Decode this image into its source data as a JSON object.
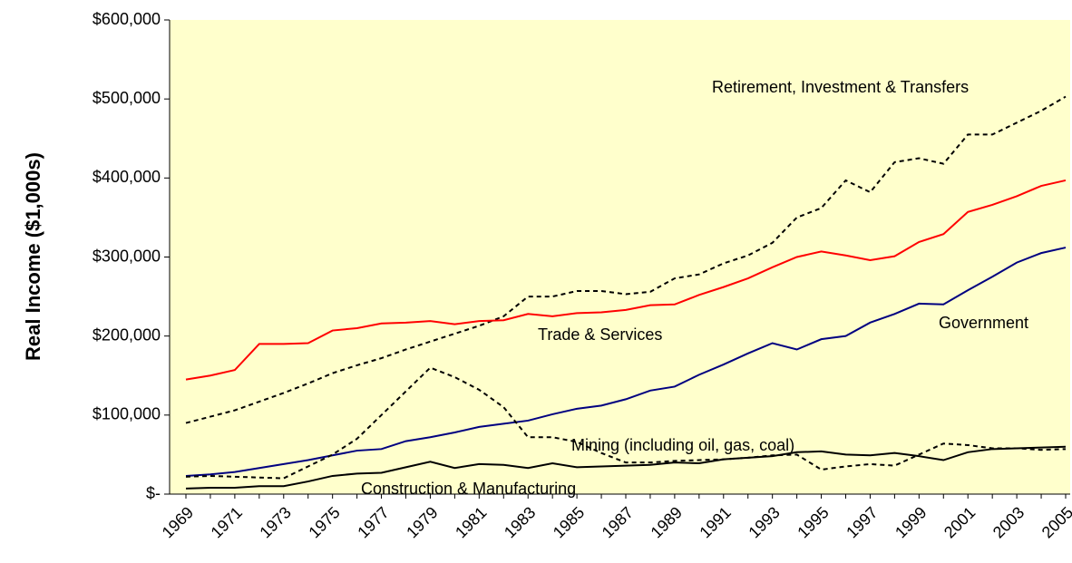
{
  "chart_data": {
    "type": "line",
    "y_label": "Real Income ($1,000s)",
    "categories": [
      "1969",
      null,
      "1971",
      null,
      "1973",
      null,
      "1975",
      null,
      "1977",
      null,
      "1979",
      null,
      "1981",
      null,
      "1983",
      null,
      "1985",
      null,
      "1987",
      null,
      "1989",
      null,
      "1991",
      null,
      "1993",
      null,
      "1995",
      null,
      "1997",
      null,
      "1999",
      null,
      "2001",
      null,
      "2003",
      null,
      "2005"
    ],
    "series": [
      {
        "name": "Retirement, Investment & Transfers",
        "color": "#000000",
        "dash": true,
        "values": [
          90000,
          98000,
          106000,
          117000,
          128000,
          140000,
          153000,
          163000,
          172000,
          183000,
          193000,
          203000,
          213000,
          225000,
          250000,
          250000,
          257000,
          257000,
          253000,
          256000,
          273000,
          278000,
          292000,
          302000,
          318000,
          350000,
          362000,
          397000,
          382000,
          420000,
          425000,
          418000,
          455000,
          455000,
          470000,
          485000,
          503000
        ]
      },
      {
        "name": "Trade & Services",
        "color": "#ff0000",
        "dash": false,
        "values": [
          145000,
          150000,
          157000,
          190000,
          190000,
          191000,
          207000,
          210000,
          216000,
          217000,
          219000,
          215000,
          219000,
          220000,
          228000,
          225000,
          229000,
          230000,
          233000,
          239000,
          240000,
          252000,
          262000,
          273000,
          287000,
          300000,
          307000,
          302000,
          296000,
          301000,
          319000,
          329000,
          357000,
          366000,
          377000,
          390000,
          397000
        ]
      },
      {
        "name": "Government",
        "color": "#000080",
        "dash": false,
        "values": [
          23000,
          25000,
          28000,
          33000,
          38000,
          43000,
          49000,
          55000,
          57000,
          67000,
          72000,
          78000,
          85000,
          89000,
          93000,
          101000,
          108000,
          112000,
          120000,
          131000,
          136000,
          151000,
          164000,
          178000,
          191000,
          183000,
          196000,
          200000,
          217000,
          228000,
          241000,
          240000,
          258000,
          275000,
          293000,
          305000,
          312000
        ]
      },
      {
        "name": "Mining (including oil, gas, coal)",
        "color": "#000000",
        "dash": true,
        "values": [
          22000,
          23000,
          22000,
          21000,
          20000,
          35000,
          50000,
          70000,
          100000,
          130000,
          160000,
          148000,
          132000,
          110000,
          72000,
          72000,
          66000,
          52000,
          40000,
          40000,
          42000,
          43000,
          44000,
          46000,
          49000,
          50000,
          31000,
          35000,
          38000,
          36000,
          50000,
          64000,
          62000,
          58000,
          58000,
          56000,
          57000
        ]
      },
      {
        "name": "Construction & Manufacturing",
        "color": "#000000",
        "dash": false,
        "values": [
          7000,
          8000,
          8000,
          10000,
          10000,
          16000,
          23000,
          26000,
          27000,
          34000,
          41000,
          33000,
          38000,
          37000,
          33000,
          39000,
          34000,
          35000,
          36000,
          37000,
          40000,
          39000,
          44000,
          46000,
          48000,
          53000,
          54000,
          50000,
          49000,
          52000,
          48000,
          43000,
          53000,
          57000,
          58000,
          59000,
          60000
        ]
      }
    ],
    "ylim": [
      0,
      600000
    ],
    "yticks": [
      {
        "value": 0,
        "label": "$-"
      },
      {
        "value": 100000,
        "label": "$100,000"
      },
      {
        "value": 200000,
        "label": "$200,000"
      },
      {
        "value": 300000,
        "label": "$300,000"
      },
      {
        "value": 400000,
        "label": "$400,000"
      },
      {
        "value": 500000,
        "label": "$500,000"
      },
      {
        "value": 600000,
        "label": "$600,000"
      }
    ],
    "background": "#ffffcc"
  }
}
